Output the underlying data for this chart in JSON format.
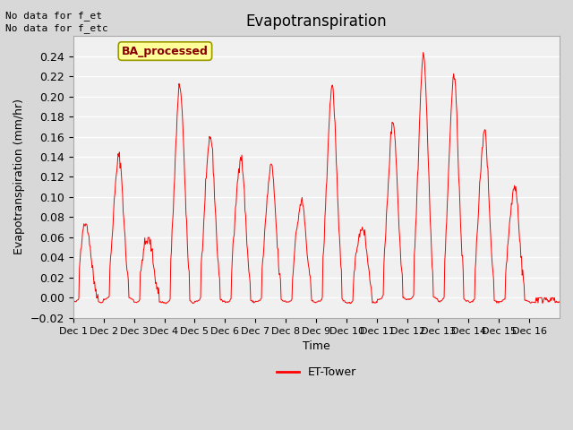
{
  "title": "Evapotranspiration",
  "ylabel": "Evapotranspiration (mm/hr)",
  "xlabel": "Time",
  "text_top_left_line1": "No data for f_et",
  "text_top_left_line2": "No data for f_etc",
  "legend_box_label": "BA_processed",
  "legend_line_label": "ET-Tower",
  "ylim": [
    -0.02,
    0.26
  ],
  "yticks": [
    -0.02,
    0.0,
    0.02,
    0.04,
    0.06,
    0.08,
    0.1,
    0.12,
    0.14,
    0.16,
    0.18,
    0.2,
    0.22,
    0.24
  ],
  "xtick_labels": [
    "Dec 1",
    "Dec 2",
    "Dec 3",
    "Dec 4",
    "Dec 5",
    "Dec 6",
    "Dec 7",
    "Dec 8",
    "Dec 9",
    "Dec 10",
    "Dec 11",
    "Dec 12",
    "Dec 13",
    "Dec 14",
    "Dec 15",
    "Dec 16"
  ],
  "line_color": "#ff0000",
  "fig_bg_color": "#d8d8d8",
  "plot_bg_color": "#f0f0f0",
  "grid_color": "#ffffff",
  "box_facecolor": "#ffff99",
  "box_edgecolor": "#999900",
  "box_text_color": "#880000",
  "n_days": 16,
  "points_per_day": 48,
  "day_peaks": [
    0.07,
    0.14,
    0.057,
    0.21,
    0.16,
    0.14,
    0.13,
    0.095,
    0.21,
    0.07,
    0.175,
    0.24,
    0.22,
    0.165,
    0.11,
    0.0
  ],
  "day_peak_positions": [
    0.45,
    0.52,
    0.5,
    0.52,
    0.52,
    0.52,
    0.52,
    0.52,
    0.52,
    0.52,
    0.52,
    0.52,
    0.52,
    0.52,
    0.52,
    0.5
  ],
  "min_vals": [
    -0.015,
    -0.005,
    -0.015,
    -0.018,
    -0.012,
    -0.015,
    -0.012,
    -0.014,
    -0.014,
    -0.018,
    -0.005,
    -0.005,
    -0.013,
    -0.015,
    -0.012,
    -0.015
  ]
}
